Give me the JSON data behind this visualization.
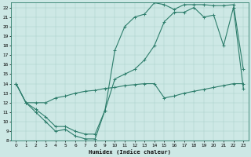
{
  "xlabel": "Humidex (Indice chaleur)",
  "ylabel": "",
  "xlim": [
    -0.5,
    23.5
  ],
  "ylim": [
    8,
    22.5
  ],
  "xticks": [
    0,
    1,
    2,
    3,
    4,
    5,
    6,
    7,
    8,
    9,
    10,
    11,
    12,
    13,
    14,
    15,
    16,
    17,
    18,
    19,
    20,
    21,
    22,
    23
  ],
  "yticks": [
    8,
    9,
    10,
    11,
    12,
    13,
    14,
    15,
    16,
    17,
    18,
    19,
    20,
    21,
    22
  ],
  "bg_color": "#cde8e5",
  "line_color": "#2d7d6b",
  "line1": {
    "x": [
      0,
      1,
      2,
      3,
      4,
      5,
      6,
      7,
      8,
      9,
      10,
      11,
      12,
      13,
      14,
      15,
      16,
      17,
      18,
      19,
      20,
      21,
      22,
      23
    ],
    "y": [
      14,
      12,
      12,
      12,
      12.5,
      12.7,
      13.0,
      13.2,
      13.3,
      13.5,
      13.6,
      13.8,
      13.9,
      14.0,
      14.0,
      12.5,
      12.7,
      13.0,
      13.2,
      13.4,
      13.6,
      13.8,
      14.0,
      14.0
    ]
  },
  "line2": {
    "x": [
      0,
      1,
      2,
      3,
      4,
      5,
      6,
      7,
      8,
      9,
      10,
      11,
      12,
      13,
      14,
      15,
      16,
      17,
      18,
      19,
      20,
      21,
      22,
      23
    ],
    "y": [
      14,
      12,
      11,
      10,
      9,
      9.2,
      8.5,
      8.2,
      8.2,
      11.2,
      17.5,
      20,
      21,
      21.3,
      22.5,
      22.3,
      21.8,
      22.3,
      22.3,
      22.3,
      22.2,
      22.2,
      22.3,
      15.5
    ]
  },
  "line3": {
    "x": [
      0,
      1,
      2,
      3,
      4,
      5,
      6,
      7,
      8,
      9,
      10,
      11,
      12,
      13,
      14,
      15,
      16,
      17,
      18,
      19,
      20,
      21,
      22,
      23
    ],
    "y": [
      14,
      12,
      11.3,
      10.5,
      9.5,
      9.5,
      9.0,
      8.7,
      8.7,
      11.2,
      14.5,
      15.0,
      15.5,
      16.5,
      18.0,
      20.5,
      21.5,
      21.5,
      22.0,
      21.0,
      21.2,
      18.0,
      22.0,
      13.5
    ]
  }
}
